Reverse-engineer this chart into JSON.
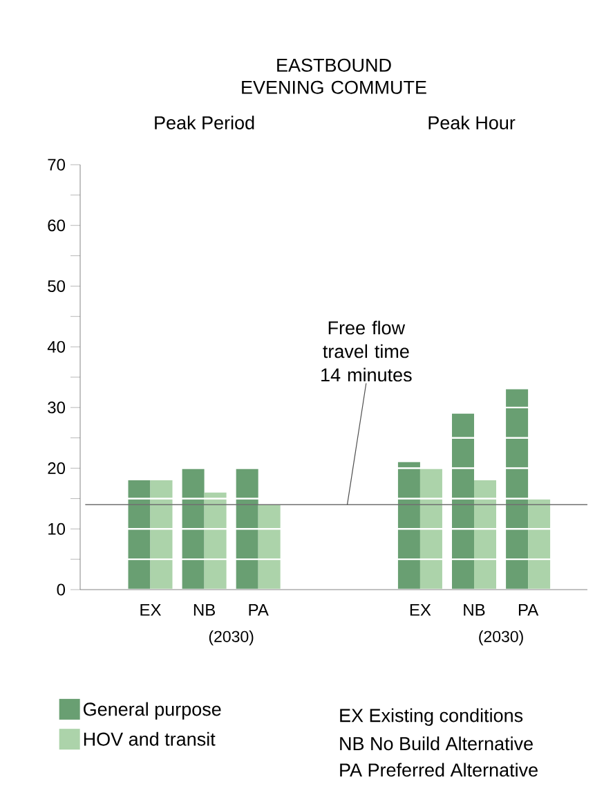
{
  "chart_data": {
    "type": "bar",
    "title": "EASTBOUND EVENING COMMUTE",
    "categories": [
      "EX",
      "NB",
      "PA",
      null,
      null,
      "EX",
      "NB",
      "PA"
    ],
    "series": [
      {
        "name": "General purpose",
        "color": "#699f72",
        "values": [
          18,
          20,
          20,
          null,
          null,
          21,
          29,
          33
        ]
      },
      {
        "name": "HOV and transit",
        "color": "#acd3aa",
        "values": [
          18,
          16,
          14,
          null,
          null,
          20,
          18,
          15
        ]
      }
    ],
    "ylim": [
      0,
      70
    ],
    "yticks": [
      0,
      {
        "value": 5,
        "label": null
      },
      10,
      {
        "value": 15,
        "label": null
      },
      20,
      {
        "value": 25,
        "label": null
      },
      30,
      {
        "value": 35,
        "label": null
      },
      40,
      {
        "value": 45,
        "label": null
      },
      50,
      {
        "value": 55,
        "label": null
      },
      60,
      {
        "value": 65,
        "label": null
      },
      70
    ],
    "grid": "y",
    "legend": "bottom left",
    "ref_lines": [
      {
        "axis": "y",
        "value": 14,
        "label": "Free flow travel time 14 minutes",
        "color": "#707070"
      }
    ],
    "annotations": [
      "Peak Period",
      "Peak Hour",
      "(2030)",
      "(2030)",
      "EX Existing conditions",
      "NB No Build Alternative",
      "PA Preferred Alternative"
    ]
  }
}
